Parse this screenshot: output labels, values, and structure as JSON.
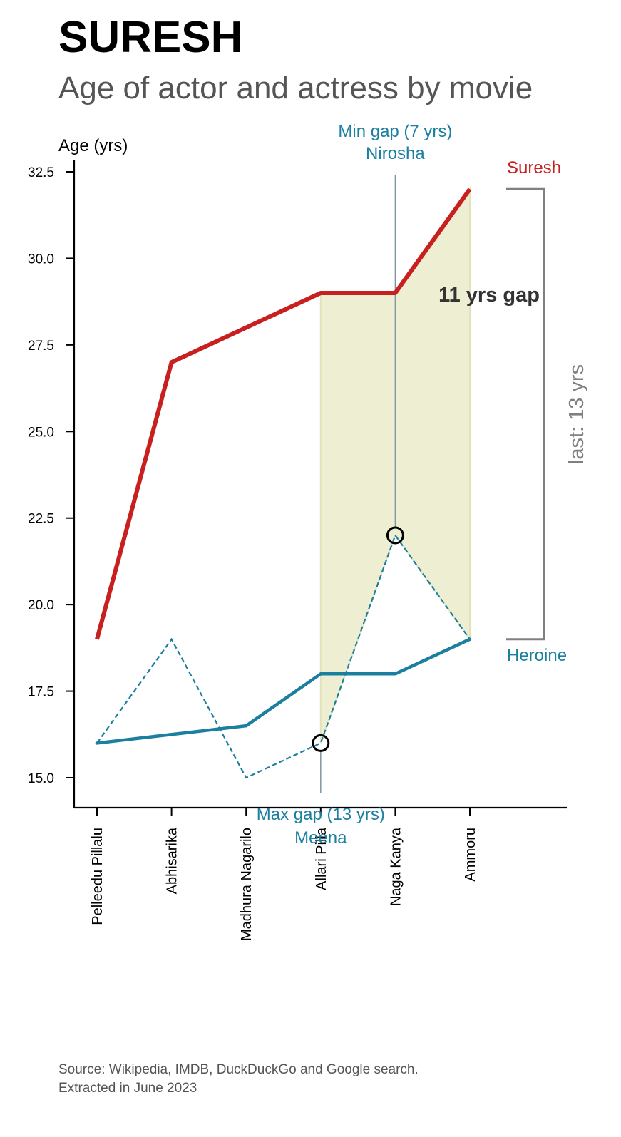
{
  "title": "SURESH",
  "subtitle": "Age of actor and actress by movie",
  "source_line1": "Source: Wikipedia, IMDB, DuckDuckGo and Google search.",
  "source_line2": "Extracted in June 2023",
  "colors": {
    "actor": "#c8201f",
    "heroine": "#1b7fa0",
    "gap_fill": "#eeeed2",
    "bracket": "#808080",
    "guide": "#7f95a3"
  },
  "chart_data": {
    "type": "line",
    "ylabel": "Age (yrs)",
    "ylim": [
      14.2,
      33.0
    ],
    "yticks": [
      15.0,
      17.5,
      20.0,
      22.5,
      25.0,
      27.5,
      30.0,
      32.5
    ],
    "ytick_labels": [
      "15.0",
      "17.5",
      "20.0",
      "22.5",
      "25.0",
      "27.5",
      "30.0",
      "32.5"
    ],
    "categories": [
      "Pelleedu Pillalu",
      "Abhisarika",
      "Madhura Nagarilo",
      "Allari Pilla",
      "Naga Kanya",
      "Ammoru"
    ],
    "series": [
      {
        "name": "Suresh",
        "style": "solid-thick",
        "values": [
          19,
          27,
          28,
          29,
          29,
          32
        ]
      },
      {
        "name": "Heroine",
        "style": "solid",
        "values": [
          16,
          16.25,
          16.5,
          18,
          18,
          19
        ]
      },
      {
        "style": "dashed",
        "values": [
          16,
          19,
          15,
          16,
          22,
          19
        ]
      }
    ],
    "shaded_range": {
      "from": "Allari Pilla",
      "to": "Ammoru"
    },
    "annotations": {
      "min_gap_line1": "Min gap (7 yrs)",
      "min_gap_line2": "Nirosha",
      "min_gap_category": "Naga Kanya",
      "min_gap_value": 22,
      "max_gap_line1": "Max gap (13 yrs)",
      "max_gap_line2": "Meena",
      "max_gap_category": "Allari Pilla",
      "max_gap_value": 16,
      "gap_label": "11 yrs gap",
      "last_label": "last: 13 yrs",
      "actor_label": "Suresh",
      "heroine_label": "Heroine"
    }
  }
}
